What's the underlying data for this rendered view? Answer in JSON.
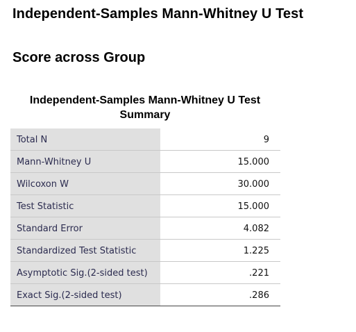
{
  "header": {
    "title": "Independent-Samples Mann-Whitney U Test",
    "subtitle": "Score across Group"
  },
  "summary_table": {
    "caption": "Independent-Samples Mann-Whitney U Test Summary",
    "rows": [
      {
        "label": "Total N",
        "value": "9"
      },
      {
        "label": "Mann-Whitney U",
        "value": "15.000"
      },
      {
        "label": "Wilcoxon W",
        "value": "30.000"
      },
      {
        "label": "Test Statistic",
        "value": "15.000"
      },
      {
        "label": "Standard Error",
        "value": "4.082"
      },
      {
        "label": "Standardized Test Statistic",
        "value": "1.225"
      },
      {
        "label": "Asymptotic Sig.(2-sided test)",
        "value": ".221"
      },
      {
        "label": "Exact Sig.(2-sided test)",
        "value": ".286"
      }
    ]
  },
  "colors": {
    "label_background": "#e0e0e0",
    "label_text": "#2b2b4f",
    "row_divider": "#c8c8c8"
  }
}
